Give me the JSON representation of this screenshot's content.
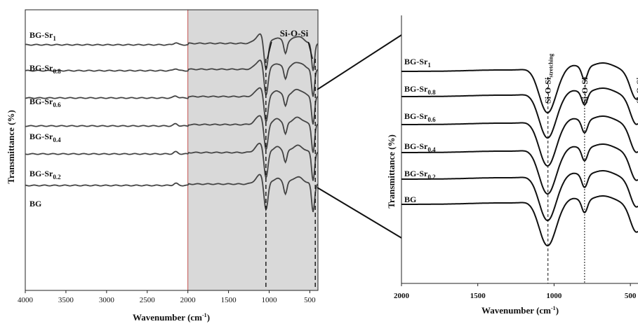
{
  "chart_data": [
    {
      "type": "line",
      "panel": "full-spectrum",
      "xlabel": "Wavenumber (cm",
      "xlabel_sup": "-1",
      "xlabel_end": ")",
      "ylabel": "Transmittance (%)",
      "xlim": [
        4000,
        400
      ],
      "x_reversed": true,
      "xticks": [
        "4000",
        "3500",
        "3000",
        "2500",
        "2000",
        "1500",
        "1000",
        "500"
      ],
      "highlight_range": [
        2000,
        400
      ],
      "highlight_color": "#d9d9d9",
      "band_annotation": "Si-O-Si",
      "band_markers": [
        1040,
        450
      ],
      "series": [
        {
          "name": "BG-Sr",
          "sub": "1"
        },
        {
          "name": "BG-Sr",
          "sub": "0.8"
        },
        {
          "name": "BG-Sr",
          "sub": "0.6"
        },
        {
          "name": "BG-Sr",
          "sub": "0.4"
        },
        {
          "name": "BG-Sr",
          "sub": "0.2"
        },
        {
          "name": "BG",
          "sub": ""
        }
      ]
    },
    {
      "type": "line",
      "panel": "zoom-2000-400",
      "xlabel": "Wavenumber (cm",
      "xlabel_sup": "-1",
      "xlabel_end": ")",
      "ylabel": "Transmittance (%)",
      "xlim": [
        2000,
        450
      ],
      "x_reversed": true,
      "xticks": [
        "2000",
        "1500",
        "1000",
        "500"
      ],
      "annotations": [
        {
          "text": "Si-O-Si",
          "sub": "stretching",
          "x": 1040
        },
        {
          "text": "Si-O-Si",
          "sub": "",
          "x": 800
        },
        {
          "text": "Si-O-Si",
          "sub": "",
          "x": 460
        }
      ],
      "series": [
        {
          "name": "BG-Sr",
          "sub": "1"
        },
        {
          "name": "BG-Sr",
          "sub": "0.8"
        },
        {
          "name": "BG-Sr",
          "sub": "0.6"
        },
        {
          "name": "BG-Sr",
          "sub": "0.4"
        },
        {
          "name": "BG-Sr",
          "sub": "0.2"
        },
        {
          "name": "BG",
          "sub": ""
        }
      ]
    }
  ]
}
